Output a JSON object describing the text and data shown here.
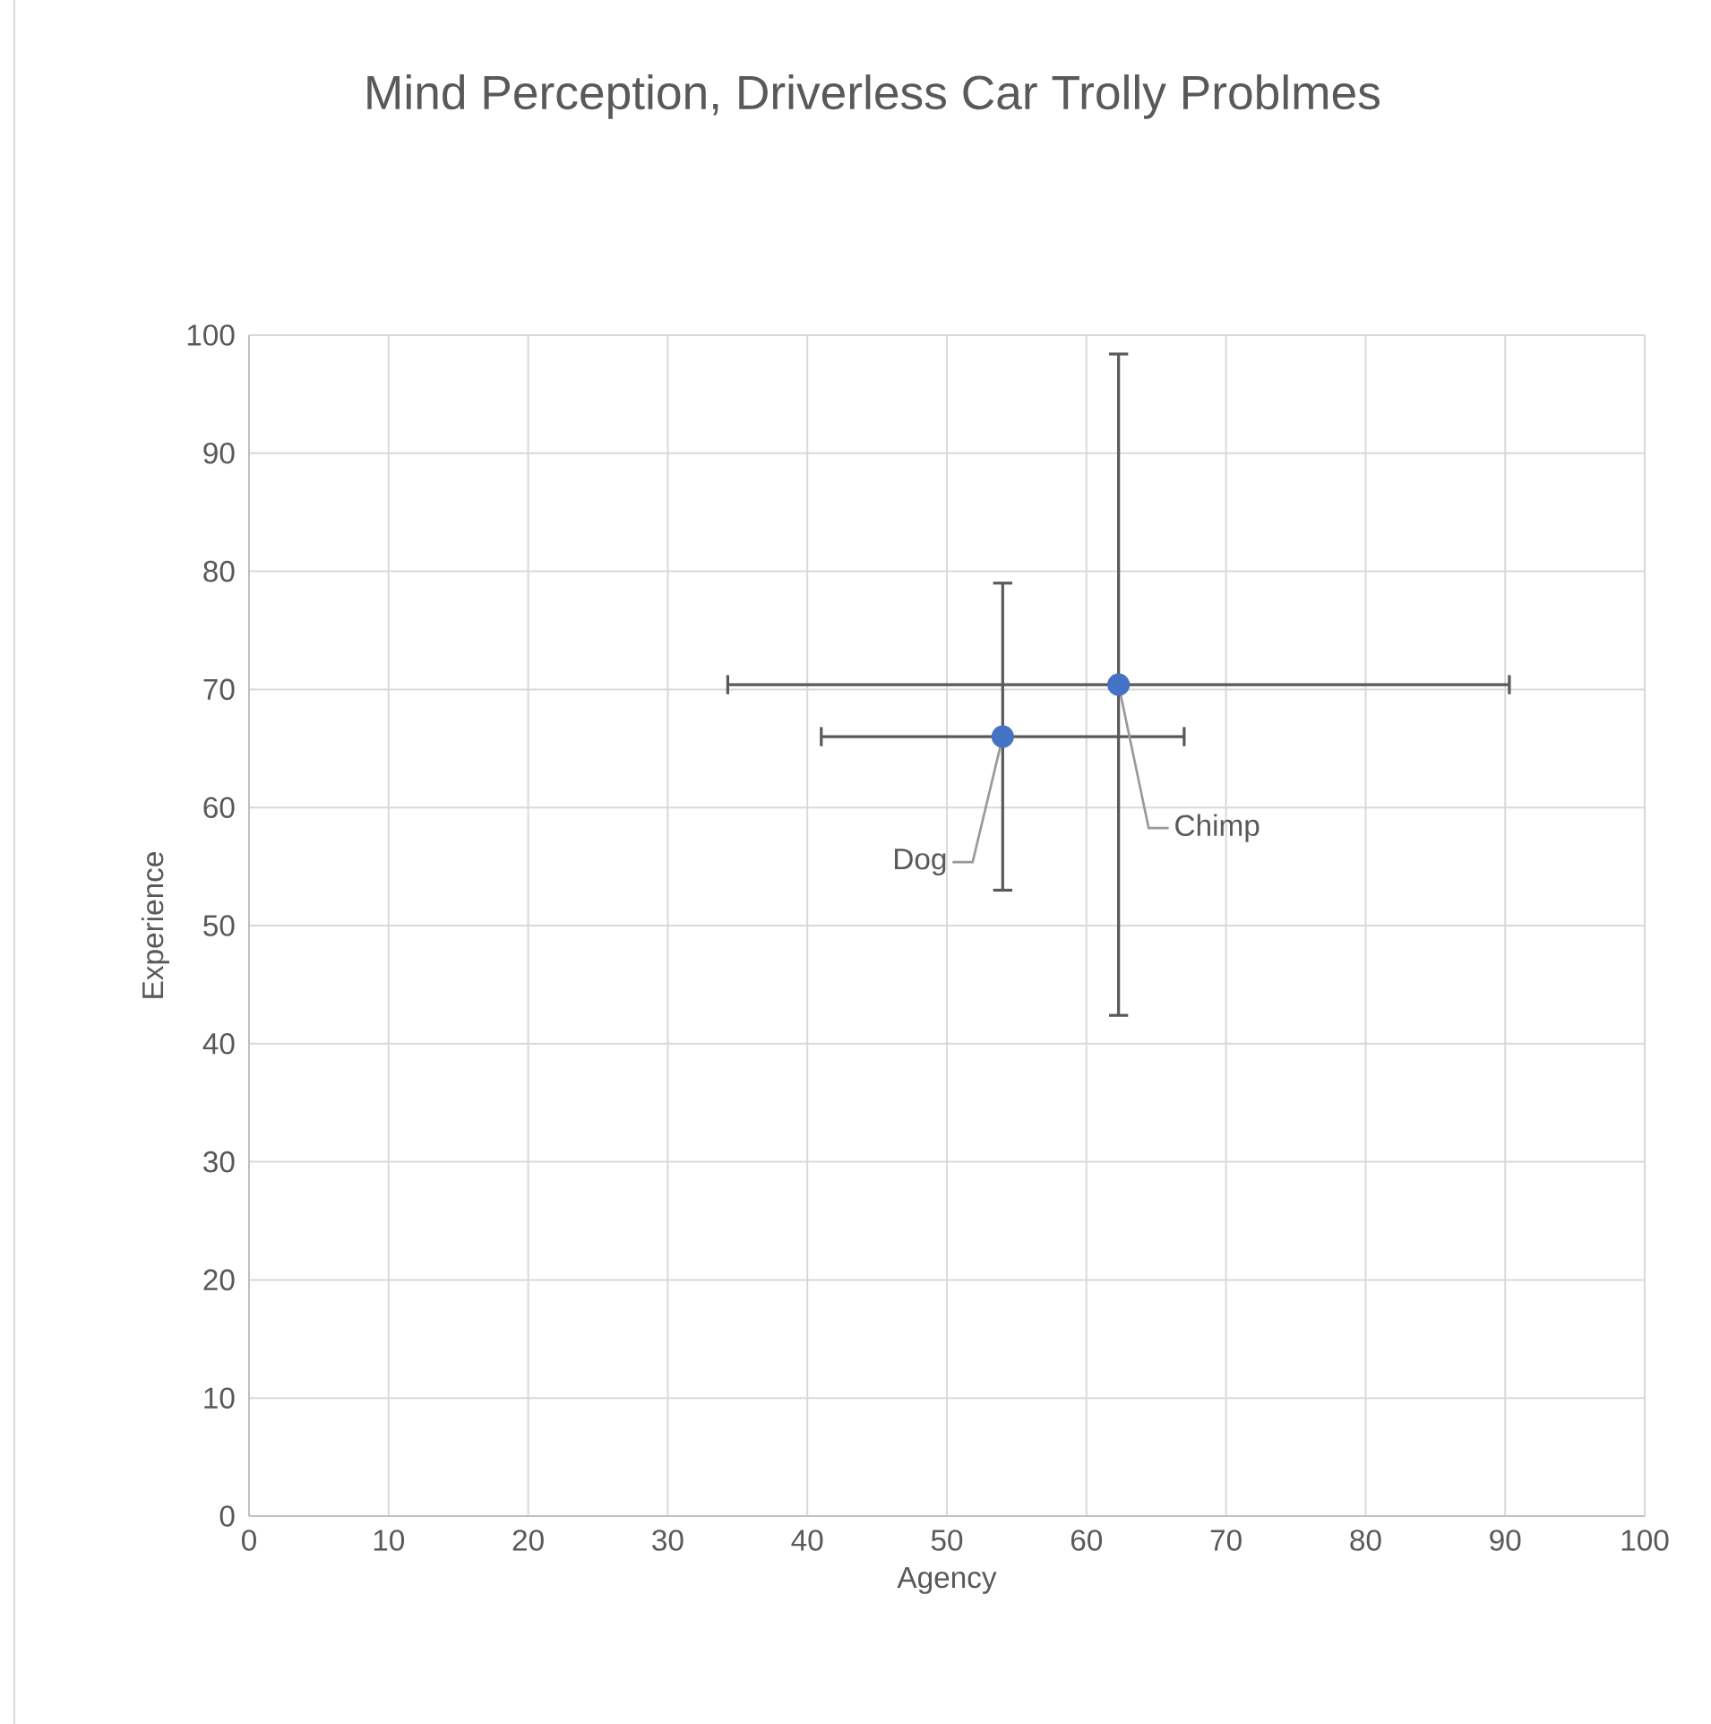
{
  "chart_data": {
    "type": "scatter",
    "title": "Mind Perception, Driverless Car Trolly Problmes",
    "xlabel": "Agency",
    "ylabel": "Experience",
    "x": [
      54,
      62.3
    ],
    "values": [
      66,
      70.4
    ],
    "errors": [
      13,
      28
    ],
    "xerrors": [
      13,
      28
    ],
    "color": "#4472c4",
    "marker": "circle",
    "xlim": [
      0,
      100
    ],
    "ylim": [
      0,
      100
    ],
    "xticks": [
      0,
      10,
      20,
      30,
      40,
      50,
      60,
      70,
      80,
      90,
      100
    ],
    "yticks": [
      0,
      10,
      20,
      30,
      40,
      50,
      60,
      70,
      80,
      90,
      100
    ],
    "grid": true,
    "annotations": [
      {
        "text": "Dog",
        "x": 54,
        "y": 66
      },
      {
        "text": "Chimp",
        "x": 62.3,
        "y": 70.4
      }
    ]
  }
}
